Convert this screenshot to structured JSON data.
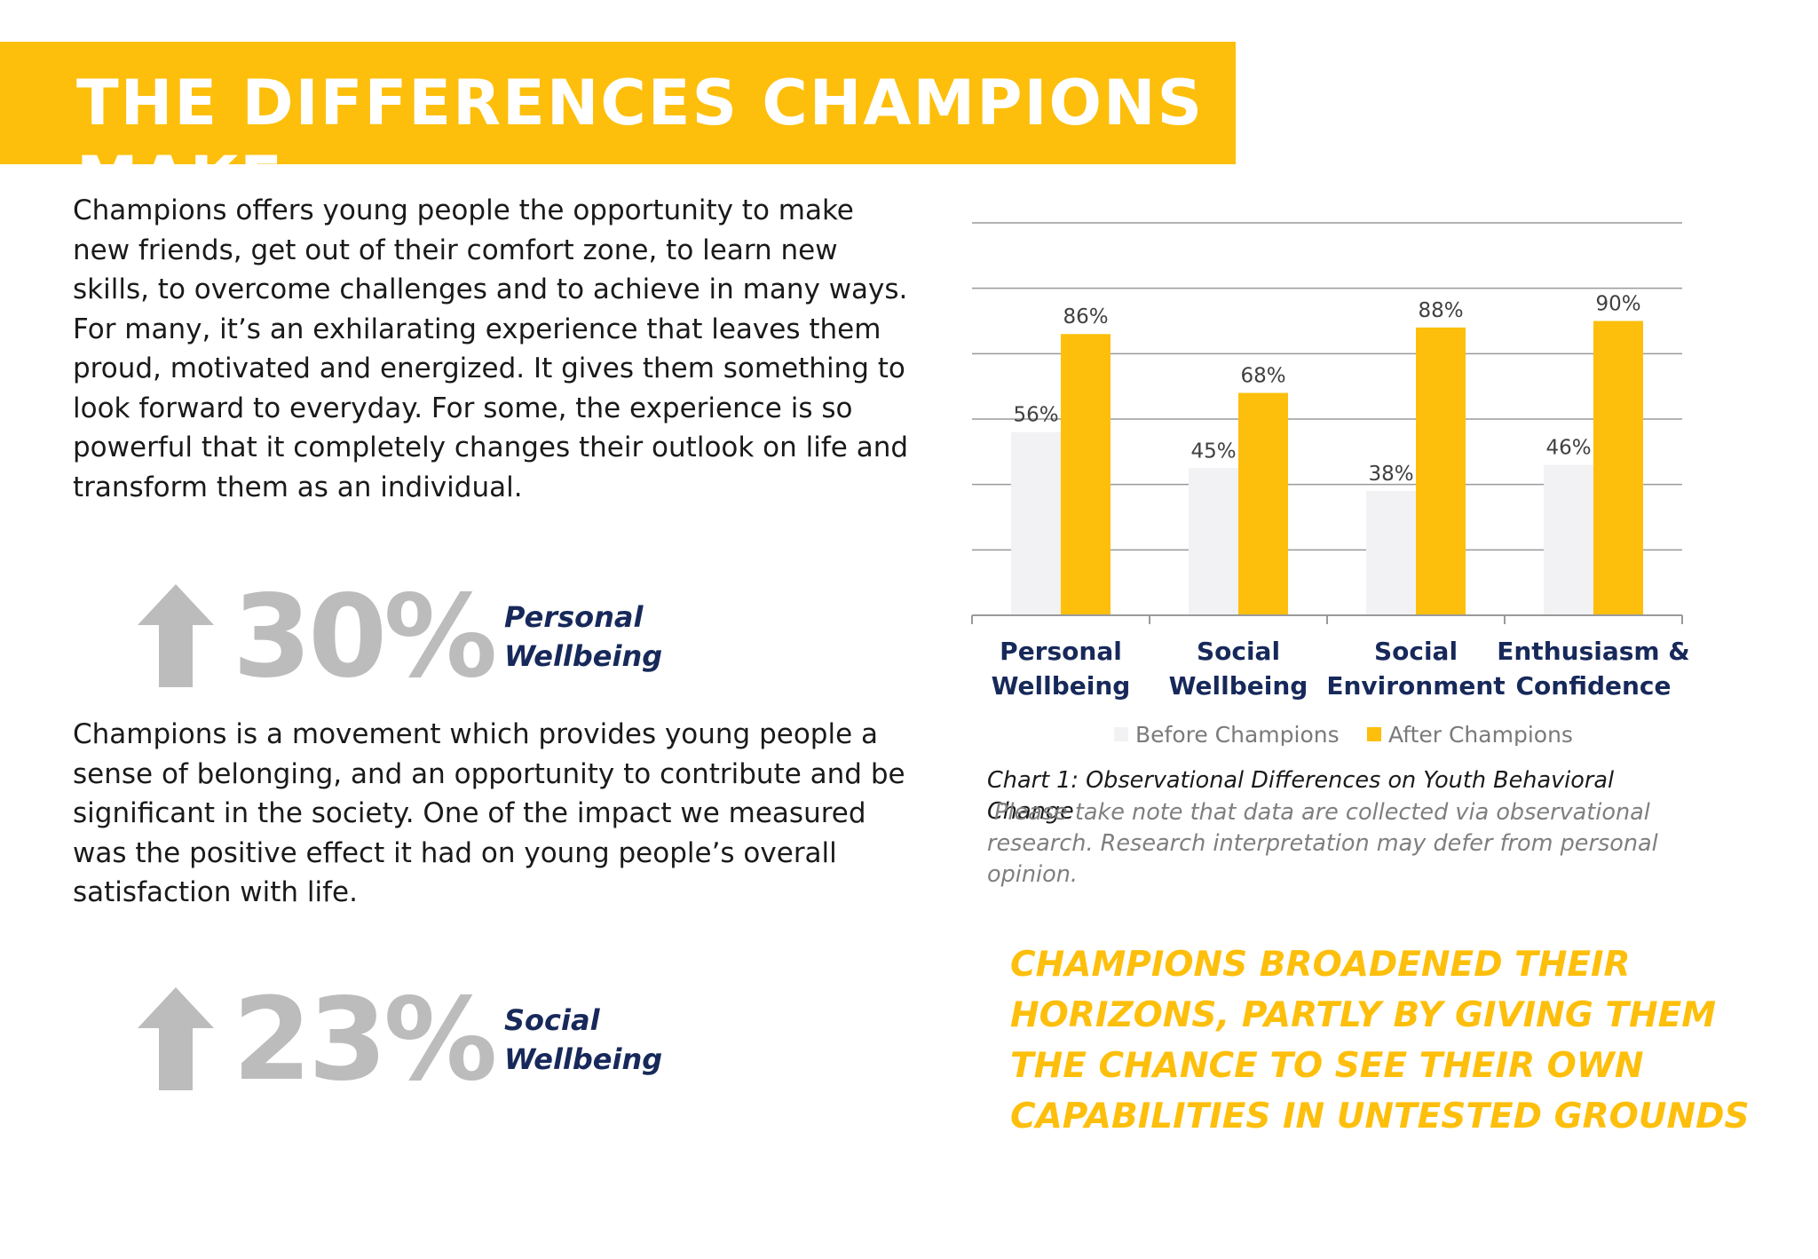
{
  "header": {
    "title": "THE DIFFERENCES CHAMPIONS MAKE"
  },
  "intro_paragraph": "Champions offers young people the opportunity to make new friends, get out of their comfort zone, to learn new skills, to overcome challenges and to achieve in many ways.  For many, it’s an exhilarating experience that leaves them proud, motivated and energized.  It gives them something to look forward to everyday.  For some, the experience is so powerful that it completely changes their outlook on life and transform them as an individual.",
  "stats": [
    {
      "value": "30%",
      "label_line1": "Personal",
      "label_line2": "Wellbeing"
    },
    {
      "value": "23%",
      "label_line1": "Social",
      "label_line2": "Wellbeing"
    }
  ],
  "movement_paragraph": "Champions is a movement which provides young people a sense of belonging, and an opportunity to contribute and be significant in the society.  One of the impact we measured was the positive effect it had on young people’s overall satisfaction with life.",
  "colors": {
    "accent_yellow": "#fdbf0c",
    "before_bar": "#f2f1f4",
    "navy_text": "#17295a",
    "stat_grey": "#bcbcbc"
  },
  "chart_data": {
    "type": "bar",
    "categories": [
      [
        "Personal",
        "Wellbeing"
      ],
      [
        "Social",
        "Wellbeing"
      ],
      [
        "Social",
        "Environment"
      ],
      [
        "Enthusiasm &",
        "Confidence"
      ]
    ],
    "series": [
      {
        "name": "Before Champions",
        "values": [
          56,
          45,
          38,
          46
        ],
        "labels": [
          "56%",
          "45%",
          "38%",
          "46%"
        ],
        "color": "#f2f1f4"
      },
      {
        "name": "After Champions",
        "values": [
          86,
          68,
          88,
          90
        ],
        "labels": [
          "86%",
          "68%",
          "88%",
          "90%"
        ],
        "color": "#fdbf0c"
      }
    ],
    "ylim": [
      0,
      120
    ],
    "grid": true,
    "legend_position": "bottom"
  },
  "chart_caption": "Chart 1:  Observational Differences on Youth Behavioral Change",
  "chart_note": "Please take note that data are collected via observational research.   Research interpretation may defer from personal opinion.",
  "callout": "CHAMPIONS BROADENED THEIR HORIZONS, PARTLY BY GIVING THEM THE CHANCE TO SEE THEIR OWN CAPABILITIES IN UNTESTED GROUNDS"
}
